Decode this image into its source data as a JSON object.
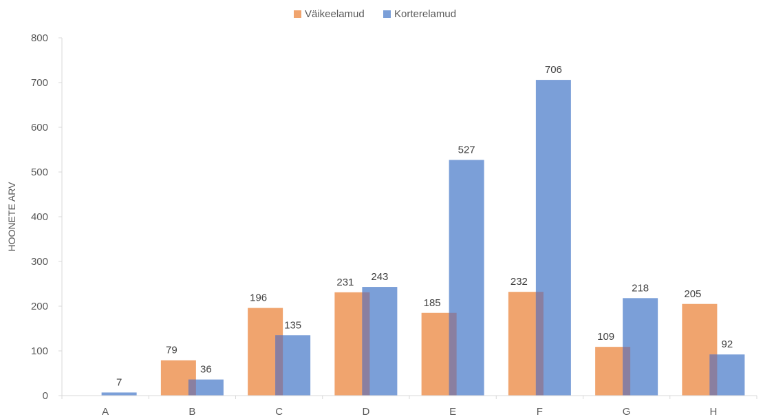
{
  "chart_data": {
    "type": "bar",
    "categories": [
      "A",
      "B",
      "C",
      "D",
      "E",
      "F",
      "G",
      "H"
    ],
    "series": [
      {
        "name": "Väikeelamud",
        "values": [
          0,
          79,
          196,
          231,
          185,
          232,
          109,
          205
        ],
        "labels": [
          "",
          "79",
          "196",
          "231",
          "185",
          "232",
          "109",
          "205"
        ],
        "color": "#F0A46E"
      },
      {
        "name": "Korterelamud",
        "values": [
          7,
          36,
          135,
          243,
          527,
          706,
          218,
          92
        ],
        "labels": [
          "7",
          "36",
          "135",
          "243",
          "527",
          "706",
          "218",
          "92"
        ],
        "color": "#7B9FD8"
      }
    ],
    "ylabel": "HOONETE ARV",
    "xlabel": "",
    "ylim": [
      0,
      800
    ],
    "yticks": [
      "0",
      "100",
      "200",
      "300",
      "400",
      "500",
      "600",
      "700",
      "800"
    ],
    "grid": false,
    "legend_position": "top"
  }
}
